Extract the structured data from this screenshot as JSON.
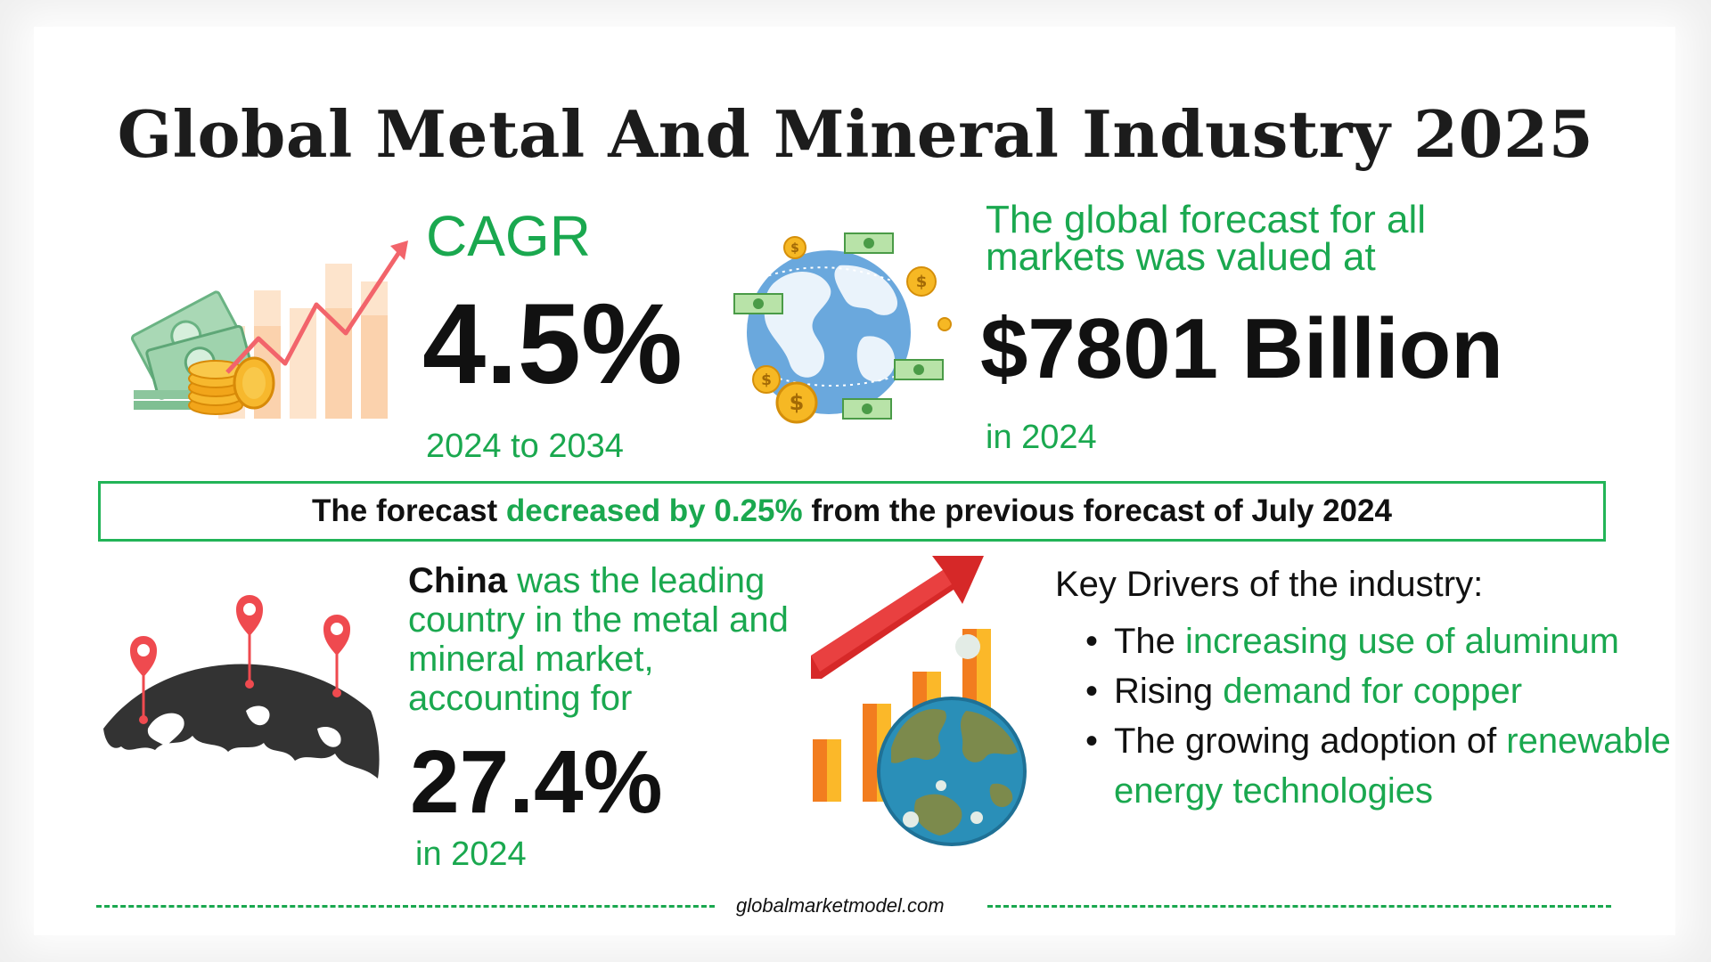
{
  "title": "Global Metal And Mineral Industry 2025",
  "cagr": {
    "label": "CAGR",
    "value": "4.5%",
    "period": "2024 to 2034"
  },
  "forecast": {
    "description": "The global forecast for all markets was valued at",
    "value": "$7801 Billion",
    "year": "in 2024"
  },
  "banner": {
    "part1": "The forecast ",
    "highlight": "decreased by 0.25%",
    "part2": " from the previous forecast of July 2024"
  },
  "leading_country": {
    "country": "China",
    "description": " was the leading country in the metal and mineral market, accounting for",
    "value": "27.4%",
    "year": "in 2024"
  },
  "drivers": {
    "title": "Key Drivers of the industry:",
    "items": [
      {
        "prefix": "The ",
        "highlight": "increasing use of aluminum"
      },
      {
        "prefix": "Rising ",
        "highlight": "demand for copper"
      },
      {
        "prefix": "The growing adoption of ",
        "highlight": "renewable energy technologies"
      }
    ]
  },
  "footer": {
    "source": "globalmarketmodel.com"
  },
  "colors": {
    "accent_green": "#1aa84f",
    "text_dark": "#111111",
    "pin_red": "#ef4a4f",
    "globe_blue": "#5f9fd8"
  }
}
